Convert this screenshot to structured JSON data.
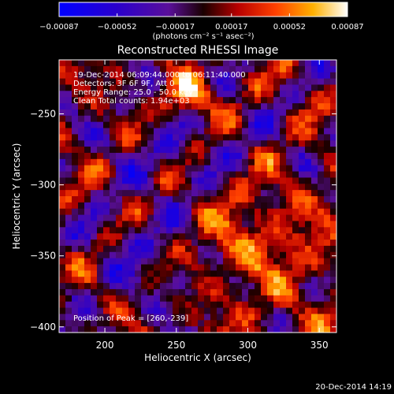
{
  "chart_data": {
    "type": "heatmap",
    "title": "Reconstructed RHESSI Image",
    "xlabel": "Heliocentric X (arcsec)",
    "ylabel": "Heliocentric Y (arcsec)",
    "xlim": [
      168,
      362
    ],
    "ylim": [
      -404,
      -212
    ],
    "x_ticks": [
      200,
      250,
      300,
      350
    ],
    "x_tick_labels": [
      "200",
      "250",
      "300",
      "350"
    ],
    "y_ticks": [
      -250,
      -300,
      -350,
      -400
    ],
    "y_tick_labels": [
      "−250",
      "−300",
      "−350",
      "−400"
    ],
    "colorbar": {
      "ticks": [
        -0.00087,
        -0.00052,
        -0.00017,
        0.00017,
        0.00052,
        0.00087
      ],
      "tick_labels": [
        "−0.00087",
        "−0.00052",
        "−0.00017",
        "0.00017",
        "0.00052",
        "0.00087"
      ],
      "units_label": "(photons cm⁻² s⁻¹ asec⁻²)",
      "min": -0.00087,
      "max": 0.00087
    },
    "annotations": [
      "19-Dec-2014 06:09:44.000 to 06:11:40.000",
      "Detectors: 3F 6F 9F, Att 0",
      "Energy Range: 25.0 - 50.0 keV",
      "Clean     Total counts: 1.94e+03"
    ],
    "peak_label": "Position of Peak = [260,-239]",
    "peak": [
      260,
      -239
    ],
    "grid": false
  },
  "footer": {
    "timestamp": "20-Dec-2014 14:19"
  }
}
